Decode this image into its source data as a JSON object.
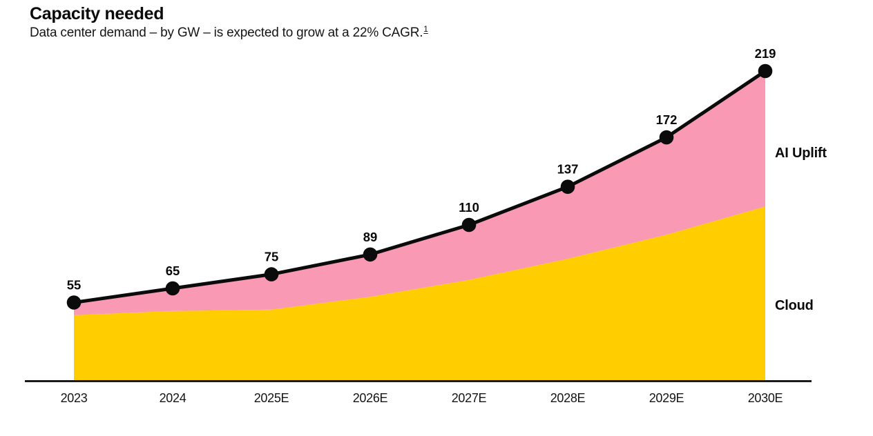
{
  "header": {
    "title": "Capacity needed",
    "subtitle": "Data center demand – by GW – is expected to grow at a 22% CAGR.",
    "footnote_marker": "1"
  },
  "side_labels": {
    "ai_uplift": "AI Uplift",
    "cloud": "Cloud"
  },
  "colors": {
    "cloud_area": "#FFCD00",
    "ai_uplift_area": "#FA99B4",
    "total_line": "#0b0b0b",
    "axis": "#1a1a1a",
    "label_text": "#0a0a0a"
  },
  "chart_data": {
    "type": "area",
    "stacked": true,
    "title": "Capacity needed",
    "subtitle": "Data center demand – by GW – is expected to grow at a 22% CAGR.",
    "unit": "GW",
    "categories": [
      "2023",
      "2024",
      "2025E",
      "2026E",
      "2027E",
      "2028E",
      "2029E",
      "2030E"
    ],
    "series": [
      {
        "name": "Cloud",
        "color": "#FFCD00",
        "values": [
          46,
          49,
          50,
          59,
          71,
          86,
          103,
          123
        ]
      },
      {
        "name": "AI Uplift",
        "color": "#FA99B4",
        "values": [
          9,
          16,
          25,
          30,
          39,
          51,
          69,
          96
        ]
      }
    ],
    "totals": [
      55,
      65,
      75,
      89,
      110,
      137,
      172,
      219
    ],
    "total_line_color": "#0b0b0b",
    "point_color": "#0b0b0b",
    "ylim": [
      0,
      269
    ],
    "grid": false,
    "y_axis_shown": false,
    "legend_position": "right-inline",
    "growth_note": "22% CAGR"
  }
}
